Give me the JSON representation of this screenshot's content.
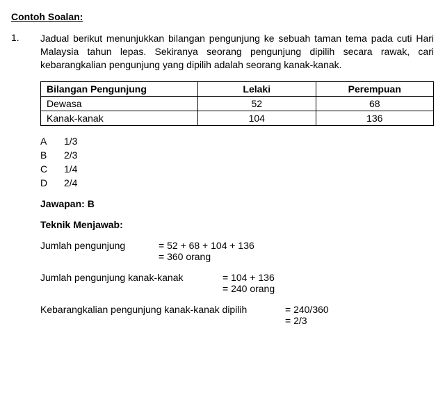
{
  "section_title": "Contoh Soalan:",
  "question": {
    "number": "1.",
    "text": "Jadual berikut menunjukkan bilangan pengunjung ke sebuah taman tema pada cuti Hari Malaysia tahun lepas. Sekiranya seorang pengunjung dipilih secara rawak, cari kebarangkalian pengunjung yang dipilih adalah seorang kanak-kanak."
  },
  "table": {
    "headers": [
      "Bilangan Pengunjung",
      "Lelaki",
      "Perempuan"
    ],
    "rows": [
      {
        "label": "Dewasa",
        "vals": [
          "52",
          "68"
        ]
      },
      {
        "label": "Kanak-kanak",
        "vals": [
          "104",
          "136"
        ]
      }
    ],
    "col_widths": [
      "40%",
      "30%",
      "30%"
    ]
  },
  "options": [
    {
      "letter": "A",
      "value": "1/3"
    },
    {
      "letter": "B",
      "value": "2/3"
    },
    {
      "letter": "C",
      "value": "1/4"
    },
    {
      "letter": "D",
      "value": "2/4"
    }
  ],
  "answer_label": "Jawapan: B",
  "technique_title": "Teknik Menjawab:",
  "work": [
    {
      "label": "Jumlah pengunjung",
      "label_width": "170px",
      "lines": [
        "= 52 + 68 + 104 + 136",
        "= 360 orang"
      ]
    },
    {
      "label": "Jumlah pengunjung kanak-kanak",
      "label_width": "262px",
      "lines": [
        "= 104 + 136",
        "= 240 orang"
      ]
    },
    {
      "label": "Kebarangkalian pengunjung kanak-kanak dipilih",
      "label_width": "352px",
      "lines": [
        "= 240/360",
        "= 2/3"
      ]
    }
  ]
}
